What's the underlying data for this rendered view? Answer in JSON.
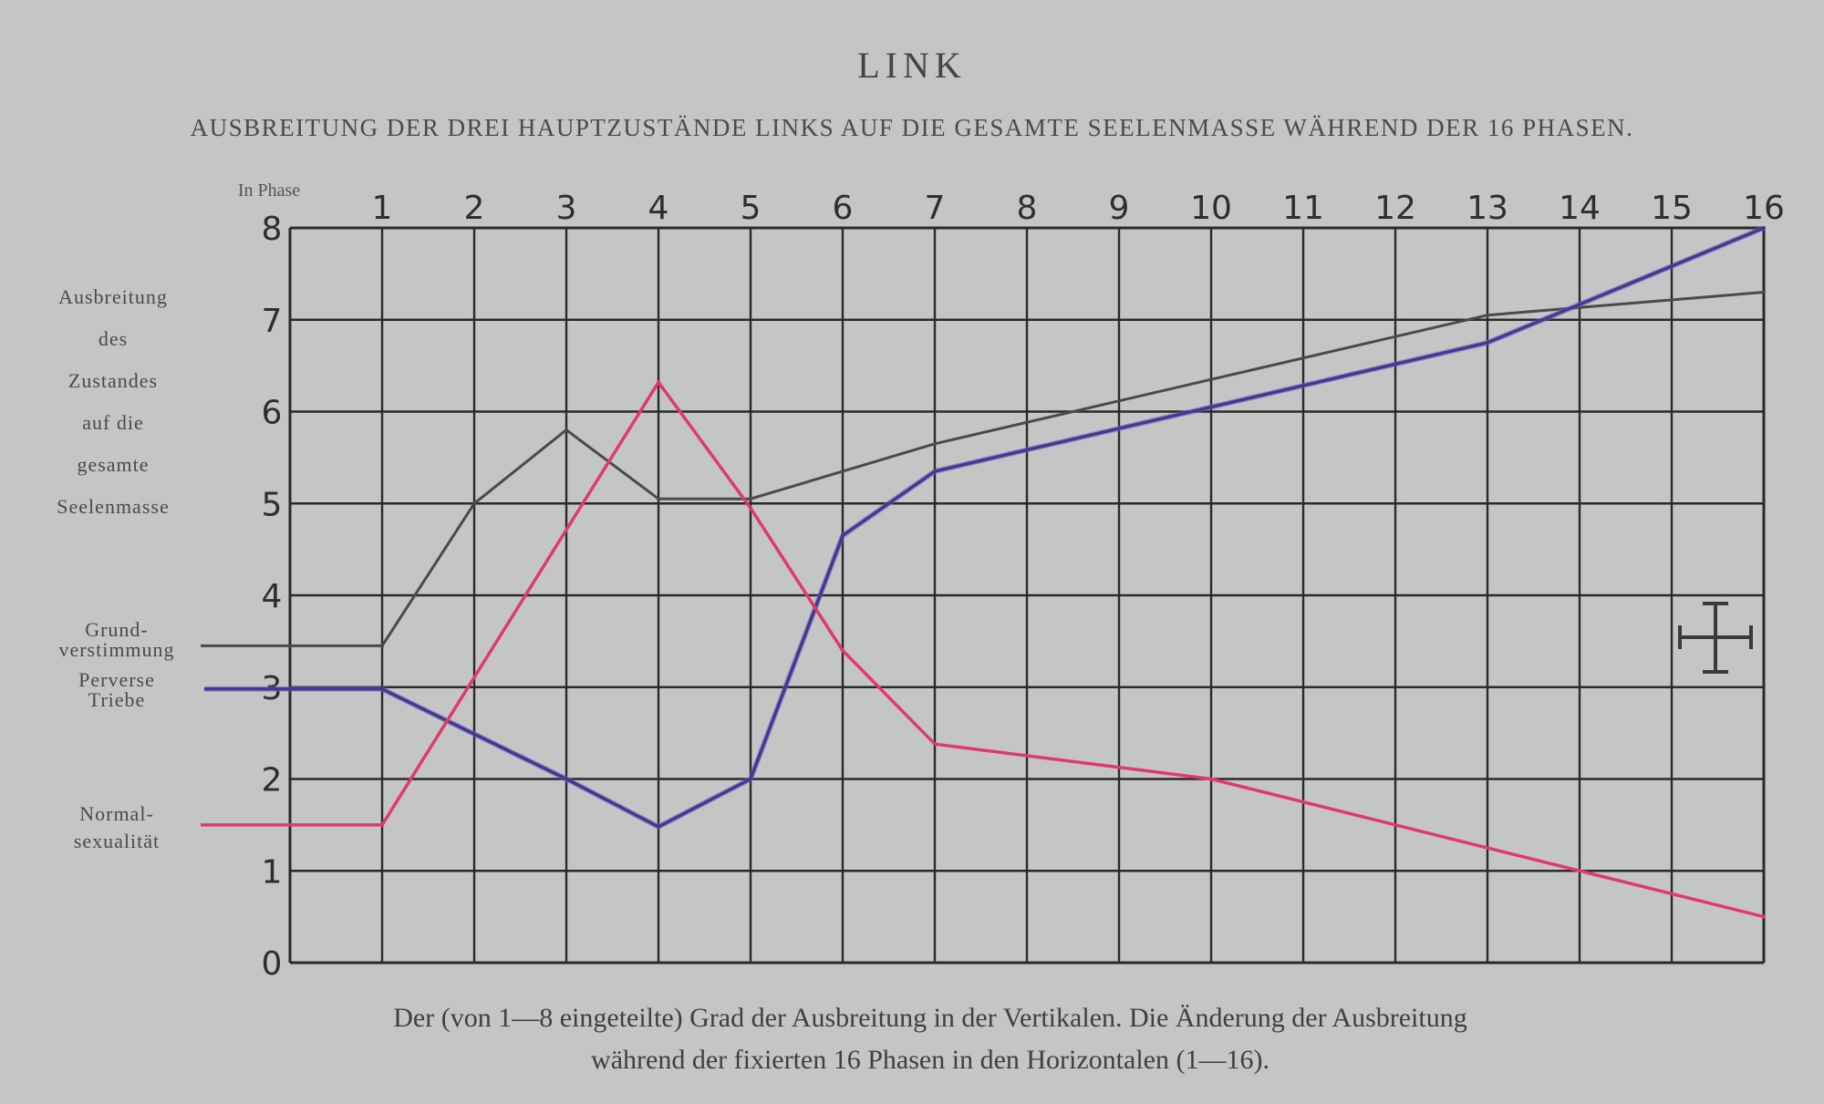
{
  "header": {
    "title": "LINK",
    "subtitle": "AUSBREITUNG DER DREI HAUPTZUSTÄNDE LINKS AUF DIE GESAMTE SEELENMASSE WÄHREND DER 16 PHASEN."
  },
  "caption": {
    "line1": "Der (von 1—8 eingeteilte) Grad der Ausbreitung in der Vertikalen. Die Änderung der Ausbreitung",
    "line2": "während der fixierten 16 Phasen in den Horizontalen (1—16)."
  },
  "axis": {
    "phase_label": "In Phase",
    "y_label_lines": [
      "Ausbreitung",
      "des",
      "Zustandes",
      "auf die",
      "gesamte",
      "Seelenmasse"
    ]
  },
  "chart_data": {
    "type": "line",
    "x": [
      1,
      2,
      3,
      4,
      5,
      6,
      7,
      8,
      9,
      10,
      11,
      12,
      13,
      14,
      15,
      16
    ],
    "xlim": [
      0,
      16
    ],
    "ylim": [
      0,
      8
    ],
    "x_ticks": [
      "1",
      "2",
      "3",
      "4",
      "5",
      "6",
      "7",
      "8",
      "9",
      "10",
      "11",
      "12",
      "13",
      "14",
      "15",
      "16"
    ],
    "y_ticks": [
      "0",
      "1",
      "2",
      "3",
      "4",
      "5",
      "6",
      "7",
      "8"
    ],
    "grid": true,
    "series": [
      {
        "name": "Grund-verstimmung",
        "label_lines": [
          "Grund-",
          "verstimmung"
        ],
        "color": "#4a4a4a",
        "start_value": 3.45,
        "points": [
          [
            1,
            3.45
          ],
          [
            2,
            5.0
          ],
          [
            3,
            5.8
          ],
          [
            4,
            5.05
          ],
          [
            5,
            5.05
          ],
          [
            7,
            5.65
          ],
          [
            13,
            7.05
          ],
          [
            16,
            7.3
          ]
        ]
      },
      {
        "name": "Perverse Triebe",
        "label_lines": [
          "Perverse",
          "Triebe"
        ],
        "color": "#4b3590",
        "start_value": 2.98,
        "points": [
          [
            1,
            2.98
          ],
          [
            3,
            2.0
          ],
          [
            4,
            1.48
          ],
          [
            5,
            2.0
          ],
          [
            6,
            4.65
          ],
          [
            7,
            5.35
          ],
          [
            10,
            6.05
          ],
          [
            13,
            6.75
          ],
          [
            16,
            8.0
          ]
        ]
      },
      {
        "name": "Normalsexualität",
        "label_lines": [
          "Normal-",
          "sexualität"
        ],
        "color": "#e03a6a",
        "start_value": 1.5,
        "points": [
          [
            1,
            1.5
          ],
          [
            4,
            6.32
          ],
          [
            5,
            4.95
          ],
          [
            6,
            3.4
          ],
          [
            7,
            2.38
          ],
          [
            10,
            2.0
          ],
          [
            16,
            0.5
          ]
        ]
      }
    ],
    "annotation": "cross-symbol"
  }
}
